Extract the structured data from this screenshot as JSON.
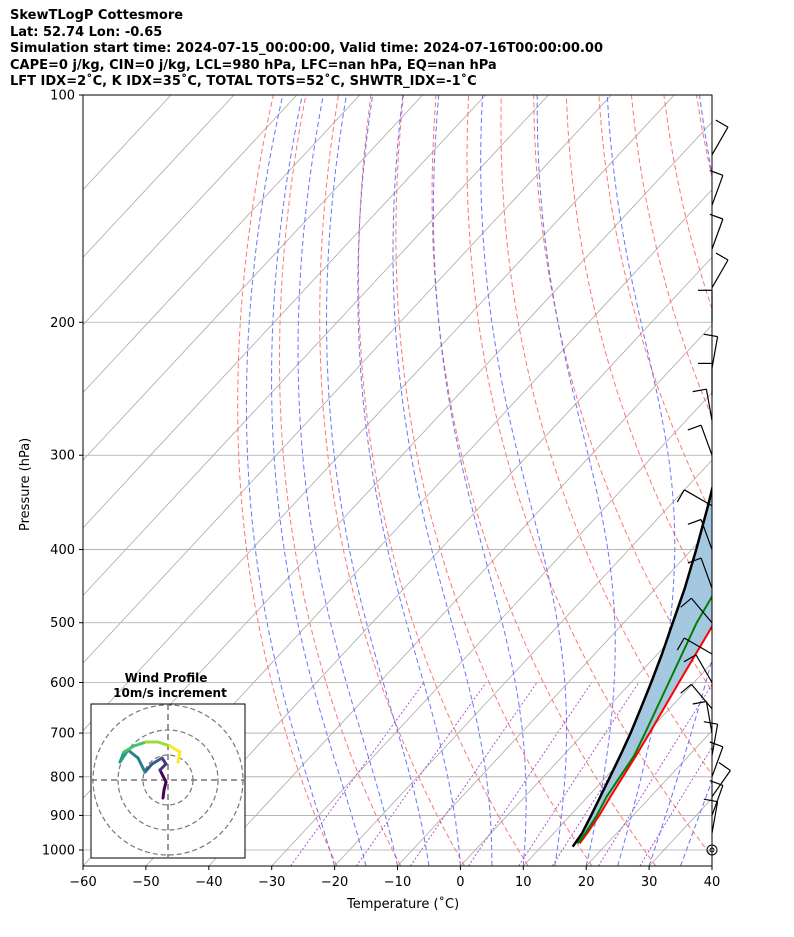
{
  "header": {
    "line1": "SkewTLogP Cottesmore",
    "line2": "Lat: 52.74   Lon: -0.65",
    "line3": "Simulation start time: 2024-07-15_00:00:00, Valid time: 2024-07-16T00:00:00.00",
    "line4": "CAPE=0 j/kg, CIN=0 j/kg, LCL=980 hPa, LFC=nan hPa, EQ=nan hPa",
    "line5": "LFT IDX=2˚C, K IDX=35˚C, TOTAL TOTS=52˚C, SHWTR_IDX=-1˚C"
  },
  "colors": {
    "temperature": "#ff0000",
    "dewpoint": "#008000",
    "parcel": "#000000",
    "fill": "#a4c8e0",
    "dry_adiabat": "#ff6666",
    "moist_adiabat": "#5566ff",
    "mixing_ratio": "#aa44cc",
    "isotherm": "#aaaaaa"
  },
  "chart_data": {
    "type": "line",
    "xlabel": "Temperature (˚C)",
    "ylabel": "Pressure (hPa)",
    "xlim": [
      -60,
      40
    ],
    "ylim": [
      1050,
      100
    ],
    "y_scale": "log",
    "x_ticks": [
      "−60",
      "−50",
      "−40",
      "−30",
      "−20",
      "−10",
      "0",
      "10",
      "20",
      "30",
      "40"
    ],
    "y_ticks": [
      "1000",
      "900",
      "800",
      "700",
      "600",
      "500",
      "400",
      "300",
      "200",
      "100"
    ],
    "grid": true,
    "series": [
      {
        "key": "temperature",
        "values": [
          [
            15.6,
            980
          ],
          [
            15.3,
            950
          ],
          [
            14.6,
            900
          ],
          [
            13.6,
            850
          ],
          [
            11.6,
            750
          ],
          [
            10.4,
            700
          ],
          [
            7.6,
            600
          ],
          [
            4.4,
            500
          ],
          [
            1.4,
            450
          ],
          [
            -1.6,
            400
          ],
          [
            -6.0,
            350
          ],
          [
            -8.1,
            310
          ],
          [
            -6.6,
            300
          ],
          [
            -4.4,
            280
          ],
          [
            -2.1,
            260
          ],
          [
            -0.4,
            245
          ],
          [
            0.6,
            230
          ],
          [
            -0.8,
            210
          ],
          [
            -0.7,
            200
          ],
          [
            0.3,
            180
          ],
          [
            -0.7,
            160
          ],
          [
            -2.5,
            140
          ],
          [
            -3.2,
            120
          ],
          [
            -4.0,
            100
          ]
        ]
      },
      {
        "key": "dewpoint",
        "values": [
          [
            15.3,
            980
          ],
          [
            15.0,
            950
          ],
          [
            14.2,
            900
          ],
          [
            13.0,
            850
          ],
          [
            11.3,
            750
          ],
          [
            9.7,
            700
          ],
          [
            6.0,
            600
          ],
          [
            1.6,
            500
          ],
          [
            -0.3,
            450
          ],
          [
            -3.1,
            400
          ],
          [
            -8.5,
            350
          ],
          [
            -10.9,
            320
          ],
          [
            -13.2,
            300
          ],
          [
            -19.5,
            270
          ],
          [
            -26.0,
            250
          ],
          [
            -30.1,
            240
          ],
          [
            -29.1,
            220
          ],
          [
            -28.9,
            200
          ],
          [
            -29.5,
            180
          ],
          [
            -30.2,
            150
          ],
          [
            -30.6,
            120
          ],
          [
            -31.8,
            100
          ]
        ]
      },
      {
        "key": "parcel",
        "values": [
          [
            15.0,
            990
          ],
          [
            14.5,
            950
          ],
          [
            13.3,
            900
          ],
          [
            12.0,
            850
          ],
          [
            10.6,
            800
          ],
          [
            9.1,
            750
          ],
          [
            7.4,
            700
          ],
          [
            5.4,
            650
          ],
          [
            3.2,
            600
          ],
          [
            0.7,
            550
          ],
          [
            -2.2,
            500
          ],
          [
            -5.4,
            450
          ],
          [
            -9.3,
            400
          ],
          [
            -13.9,
            350
          ],
          [
            -19.4,
            300
          ],
          [
            -26.3,
            250
          ],
          [
            -35.0,
            200
          ],
          [
            -46.7,
            150
          ],
          [
            -52.5,
            130
          ],
          [
            -56.4,
            120
          ],
          [
            -62.0,
            100
          ]
        ]
      }
    ],
    "wind_barbs": [
      {
        "p": 1000,
        "barbs": "calm"
      },
      {
        "p": 950
      },
      {
        "p": 900
      },
      {
        "p": 850
      },
      {
        "p": 800
      },
      {
        "p": 750
      },
      {
        "p": 700
      },
      {
        "p": 650
      },
      {
        "p": 600
      },
      {
        "p": 550
      },
      {
        "p": 500
      },
      {
        "p": 450
      },
      {
        "p": 400
      },
      {
        "p": 350
      },
      {
        "p": 300
      },
      {
        "p": 270
      },
      {
        "p": 250
      },
      {
        "p": 230
      },
      {
        "p": 200
      },
      {
        "p": 180
      },
      {
        "p": 160
      },
      {
        "p": 140
      },
      {
        "p": 120
      }
    ],
    "hodograph": {
      "title": "Wind Profile",
      "subtitle": "10m/s increment",
      "rings": 3
    }
  }
}
